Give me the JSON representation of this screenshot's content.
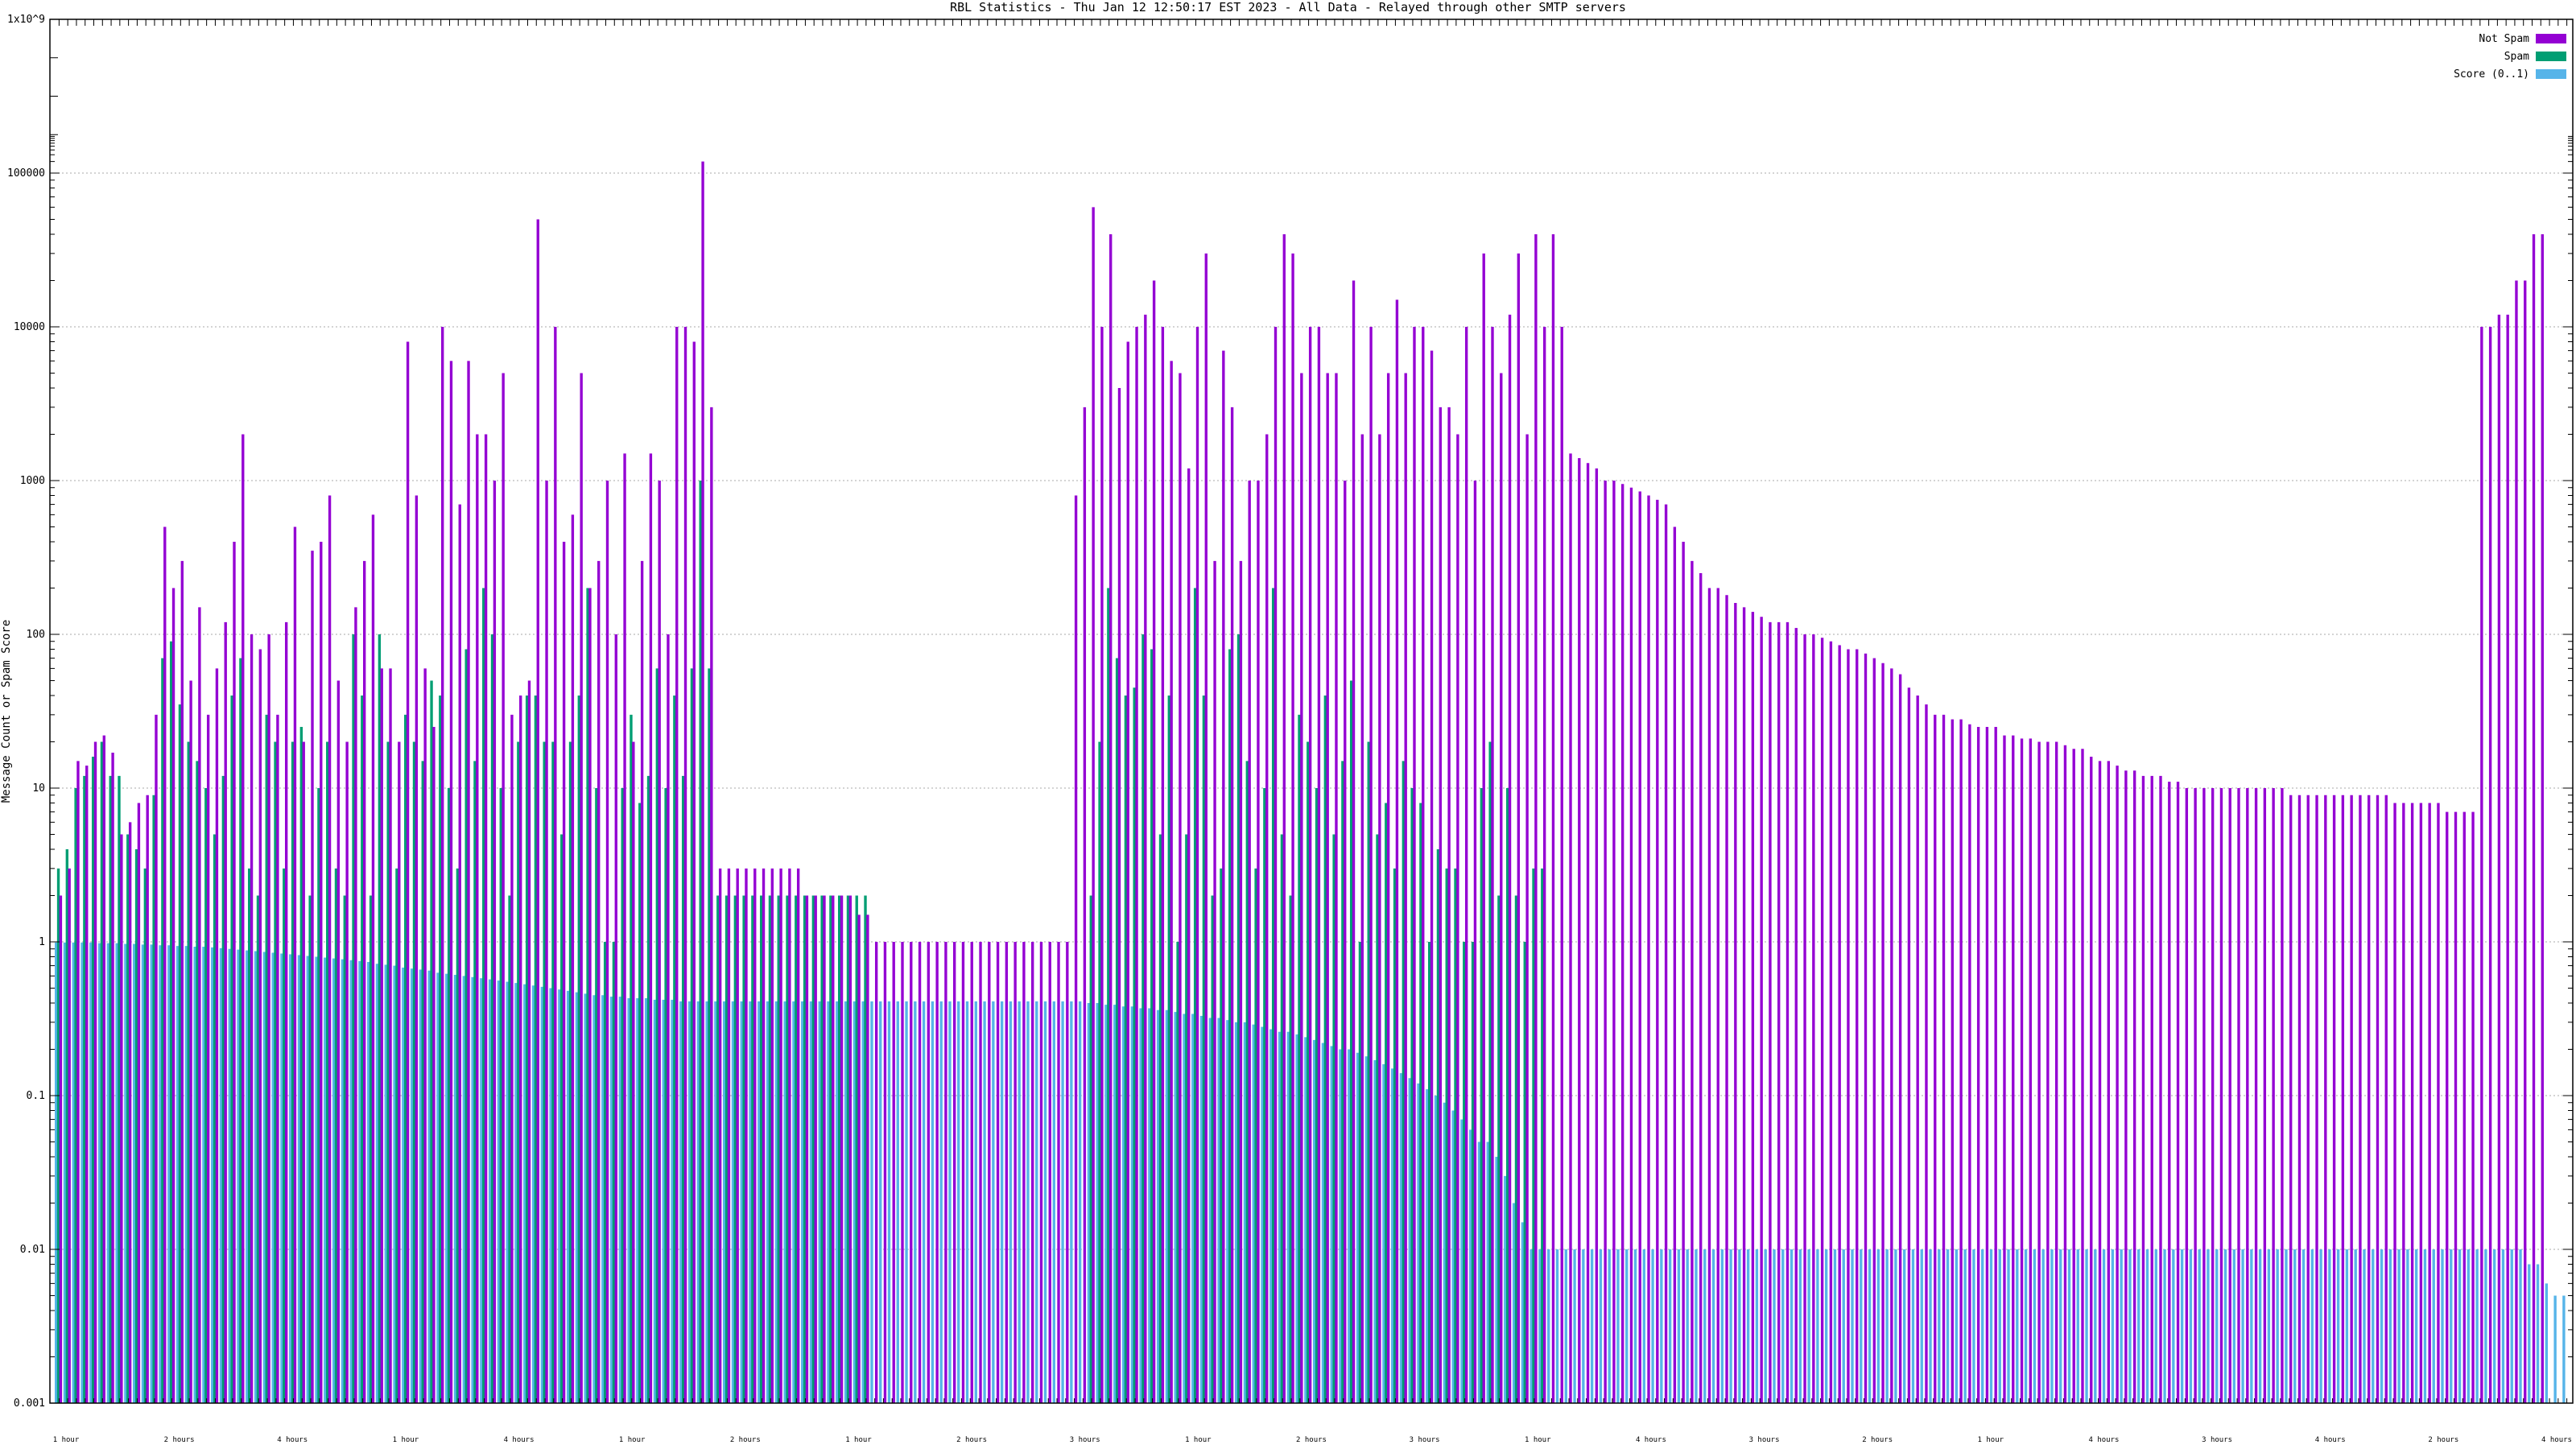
{
  "chart_data": {
    "type": "bar",
    "title": "RBL Statistics - Thu Jan 12 12:50:17 EST 2023 - All Data - Relayed through other SMTP servers",
    "ylabel": "Message Count or Spam Score",
    "xlabel": "",
    "yscale": "log",
    "ylim": [
      0.001,
      1000000000
    ],
    "yticks": [
      {
        "value": 0.001,
        "label": "0.001"
      },
      {
        "value": 0.01,
        "label": "0.01"
      },
      {
        "value": 0.1,
        "label": "0.1"
      },
      {
        "value": 1,
        "label": "1"
      },
      {
        "value": 10,
        "label": "10"
      },
      {
        "value": 100,
        "label": "100"
      },
      {
        "value": 1000,
        "label": "1000"
      },
      {
        "value": 10000,
        "label": "10000"
      },
      {
        "value": 100000,
        "label": "100000"
      },
      {
        "value": 1000000000,
        "label": "1x10^9"
      }
    ],
    "grid": true,
    "legend_position": "top-right",
    "colors": {
      "not_spam": "#9400d3",
      "spam": "#009e73",
      "score": "#56b4e9"
    },
    "series": [
      {
        "name": "Not Spam",
        "values": [
          2,
          3,
          15,
          14,
          20,
          22,
          17,
          5,
          6,
          8,
          9,
          30,
          500,
          200,
          300,
          50,
          150,
          30,
          60,
          120,
          400,
          2000,
          100,
          80,
          100,
          30,
          120,
          500,
          20,
          350,
          400,
          800,
          50,
          20,
          150,
          300,
          600,
          60,
          60,
          20,
          8000,
          800,
          60,
          25,
          10000,
          6000,
          700,
          6000,
          2000,
          2000,
          1000,
          5000,
          30,
          40,
          50,
          50000,
          1000,
          10000,
          400,
          600,
          5000,
          200,
          300,
          1000,
          100,
          1500,
          20,
          300,
          1500,
          1000,
          100,
          10000,
          10000,
          8000,
          200000,
          3000,
          3,
          3,
          3,
          3,
          3,
          3,
          3,
          3,
          3,
          3,
          2,
          2,
          2,
          2,
          2,
          2,
          1.5,
          1.5,
          1,
          1,
          1,
          1,
          1,
          1,
          1,
          1,
          1,
          1,
          1,
          1,
          1,
          1,
          1,
          1,
          1,
          1,
          1,
          1,
          1,
          1,
          1,
          800,
          3000,
          60000,
          10000,
          40000,
          4000,
          8000,
          10000,
          12000,
          20000,
          10000,
          6000,
          5000,
          1200,
          10000,
          30000,
          300,
          7000,
          3000,
          300,
          1000,
          1000,
          2000,
          10000,
          40000,
          30000,
          5000,
          10000,
          10000,
          5000,
          5000,
          1000,
          20000,
          2000,
          10000,
          2000,
          5000,
          15000,
          5000,
          10000,
          10000,
          7000,
          3000,
          3000,
          2000,
          10000,
          1000,
          30000,
          10000,
          5000,
          12000,
          30000,
          2000,
          40000,
          10000,
          40000,
          10000,
          1500,
          1400,
          1300,
          1200,
          1000,
          1000,
          950,
          900,
          850,
          800,
          750,
          700,
          500,
          400,
          300,
          250,
          200,
          200,
          180,
          160,
          150,
          140,
          130,
          120,
          120,
          120,
          110,
          100,
          100,
          95,
          90,
          85,
          80,
          80,
          75,
          70,
          65,
          60,
          55,
          45,
          40,
          35,
          30,
          30,
          28,
          28,
          26,
          25,
          25,
          25,
          22,
          22,
          21,
          21,
          20,
          20,
          20,
          19,
          18,
          18,
          16,
          15,
          15,
          14,
          13,
          13,
          12,
          12,
          12,
          11,
          11,
          10,
          10,
          10,
          10,
          10,
          10,
          10,
          10,
          10,
          10,
          10,
          10,
          9,
          9,
          9,
          9,
          9,
          9,
          9,
          9,
          9,
          9,
          9,
          9,
          8,
          8,
          8,
          8,
          8,
          8,
          7,
          7,
          7,
          7,
          10000,
          10000,
          12000,
          12000,
          20000,
          20000,
          40000,
          40000
        ],
        "value_label_note": ""
      },
      {
        "name": "Spam",
        "values": [
          3,
          4,
          10,
          12,
          16,
          20,
          12,
          12,
          5,
          4,
          3,
          9,
          70,
          90,
          35,
          20,
          15,
          10,
          5,
          12,
          40,
          70,
          3,
          2,
          30,
          20,
          3,
          20,
          25,
          2,
          10,
          20,
          3,
          2,
          100,
          40,
          2,
          100,
          20,
          3,
          30,
          20,
          15,
          50,
          40,
          10,
          3,
          80,
          15,
          200,
          100,
          10,
          2,
          20,
          40,
          40,
          20,
          20,
          5,
          20,
          40,
          200,
          10,
          1,
          1,
          10,
          30,
          8,
          12,
          60,
          10,
          40,
          12,
          60,
          1000,
          60,
          2,
          2,
          2,
          2,
          2,
          2,
          2,
          2,
          2,
          2,
          2,
          2,
          2,
          2,
          2,
          2,
          2,
          2,
          0,
          0,
          0,
          0,
          0,
          0,
          0,
          0,
          0,
          0,
          0,
          0,
          0,
          0,
          0,
          0,
          0,
          0,
          0,
          0,
          0,
          0,
          0,
          0,
          0,
          2,
          20,
          200,
          70,
          40,
          45,
          100,
          80,
          5,
          40,
          1,
          5,
          200,
          40,
          2,
          3,
          80,
          100,
          15,
          3,
          10,
          200,
          5,
          2,
          30,
          20,
          10,
          40,
          5,
          15,
          50,
          1,
          20,
          5,
          8,
          3,
          15,
          10,
          8,
          1,
          4,
          3,
          3,
          1,
          1,
          10,
          20,
          2,
          10,
          2,
          1,
          3,
          3,
          0,
          0,
          0,
          0,
          0,
          0,
          0,
          0,
          0,
          0,
          0,
          0,
          0,
          0,
          0,
          0,
          0,
          0,
          0,
          0,
          0,
          0,
          0,
          0,
          0,
          0,
          0,
          0,
          0,
          0,
          0,
          0,
          0,
          0,
          0,
          0,
          0,
          0,
          0,
          0,
          0,
          0,
          0,
          0,
          0,
          0,
          0,
          0,
          0,
          0,
          0,
          0,
          0,
          0,
          0,
          0,
          0,
          0,
          0,
          0,
          0,
          0,
          0,
          0,
          0,
          0,
          0,
          0,
          0,
          0,
          0,
          0,
          0,
          0,
          0,
          0,
          0,
          0,
          0,
          0,
          0,
          0,
          0,
          0,
          0,
          0,
          0,
          0,
          0,
          0,
          0,
          0,
          0,
          0,
          0,
          0,
          0,
          0,
          0,
          0,
          0,
          0,
          0,
          0,
          0,
          0,
          0,
          0,
          0,
          0,
          0,
          0,
          0,
          0,
          0,
          0,
          0
        ]
      },
      {
        "name": "Score (0..1)",
        "values": [
          0.99,
          0.99,
          0.99,
          0.99,
          0.99,
          0.98,
          0.98,
          0.98,
          0.97,
          0.97,
          0.96,
          0.96,
          0.95,
          0.95,
          0.94,
          0.94,
          0.93,
          0.93,
          0.92,
          0.91,
          0.9,
          0.89,
          0.88,
          0.87,
          0.86,
          0.85,
          0.84,
          0.83,
          0.82,
          0.81,
          0.8,
          0.79,
          0.78,
          0.77,
          0.76,
          0.75,
          0.74,
          0.72,
          0.71,
          0.7,
          0.68,
          0.67,
          0.66,
          0.65,
          0.63,
          0.62,
          0.61,
          0.6,
          0.59,
          0.58,
          0.57,
          0.56,
          0.55,
          0.54,
          0.53,
          0.52,
          0.51,
          0.5,
          0.49,
          0.48,
          0.47,
          0.46,
          0.45,
          0.45,
          0.44,
          0.44,
          0.43,
          0.43,
          0.43,
          0.42,
          0.42,
          0.42,
          0.41,
          0.41,
          0.41,
          0.41,
          0.41,
          0.41,
          0.41,
          0.41,
          0.41,
          0.41,
          0.41,
          0.41,
          0.41,
          0.41,
          0.41,
          0.41,
          0.41,
          0.41,
          0.41,
          0.41,
          0.41,
          0.41,
          0.41,
          0.41,
          0.41,
          0.41,
          0.41,
          0.41,
          0.41,
          0.41,
          0.41,
          0.41,
          0.41,
          0.41,
          0.41,
          0.41,
          0.41,
          0.41,
          0.41,
          0.41,
          0.41,
          0.41,
          0.41,
          0.41,
          0.41,
          0.41,
          0.41,
          0.4,
          0.4,
          0.39,
          0.39,
          0.38,
          0.38,
          0.37,
          0.37,
          0.36,
          0.36,
          0.35,
          0.34,
          0.34,
          0.33,
          0.32,
          0.32,
          0.31,
          0.3,
          0.3,
          0.29,
          0.28,
          0.27,
          0.26,
          0.26,
          0.25,
          0.24,
          0.23,
          0.22,
          0.21,
          0.2,
          0.2,
          0.19,
          0.18,
          0.17,
          0.16,
          0.15,
          0.14,
          0.13,
          0.12,
          0.11,
          0.1,
          0.09,
          0.08,
          0.07,
          0.06,
          0.05,
          0.05,
          0.04,
          0.03,
          0.02,
          0.015,
          0.01,
          0.01,
          0.01,
          0.01,
          0.01,
          0.01,
          0.01,
          0.01,
          0.01,
          0.01,
          0.01,
          0.01,
          0.01,
          0.01,
          0.01,
          0.01,
          0.01,
          0.01,
          0.01,
          0.01,
          0.01,
          0.01,
          0.01,
          0.01,
          0.01,
          0.01,
          0.01,
          0.01,
          0.01,
          0.01,
          0.01,
          0.01,
          0.01,
          0.01,
          0.01,
          0.01,
          0.01,
          0.01,
          0.01,
          0.01,
          0.01,
          0.01,
          0.01,
          0.01,
          0.01,
          0.01,
          0.01,
          0.01,
          0.01,
          0.01,
          0.01,
          0.01,
          0.01,
          0.01,
          0.01,
          0.01,
          0.01,
          0.01,
          0.01,
          0.01,
          0.01,
          0.01,
          0.01,
          0.01,
          0.01,
          0.01,
          0.01,
          0.01,
          0.01,
          0.01,
          0.01,
          0.01,
          0.01,
          0.01,
          0.01,
          0.01,
          0.01,
          0.01,
          0.01,
          0.01,
          0.01,
          0.01,
          0.01,
          0.01,
          0.01,
          0.01,
          0.01,
          0.01,
          0.01,
          0.01,
          0.01,
          0.01,
          0.01,
          0.01,
          0.01,
          0.01,
          0.01,
          0.01,
          0.01,
          0.01,
          0.01,
          0.01,
          0.01,
          0.01,
          0.01,
          0.01,
          0.01,
          0.01,
          0.01,
          0.01,
          0.01,
          0.01,
          0.01,
          0.01,
          0.01,
          0.008,
          0.008,
          0.006,
          0.005,
          0.005
        ]
      }
    ],
    "x_group_labels": [
      "1 hour",
      "2 hours",
      "4 hours",
      "1 hour",
      "4 hours",
      "1 hour",
      "2 hours",
      "1 hour",
      "2 hours",
      "3 hours",
      "1 hour",
      "2 hours",
      "3 hours",
      "1 hour",
      "4 hours",
      "3 hours",
      "2 hours",
      "1 hour",
      "4 hours",
      "3 hours",
      "4 hours",
      "2 hours",
      "4 hours"
    ],
    "legend": [
      {
        "key": "not_spam",
        "label": "Not Spam"
      },
      {
        "key": "spam",
        "label": "Spam"
      },
      {
        "key": "score",
        "label": "Score (0..1)"
      }
    ]
  }
}
